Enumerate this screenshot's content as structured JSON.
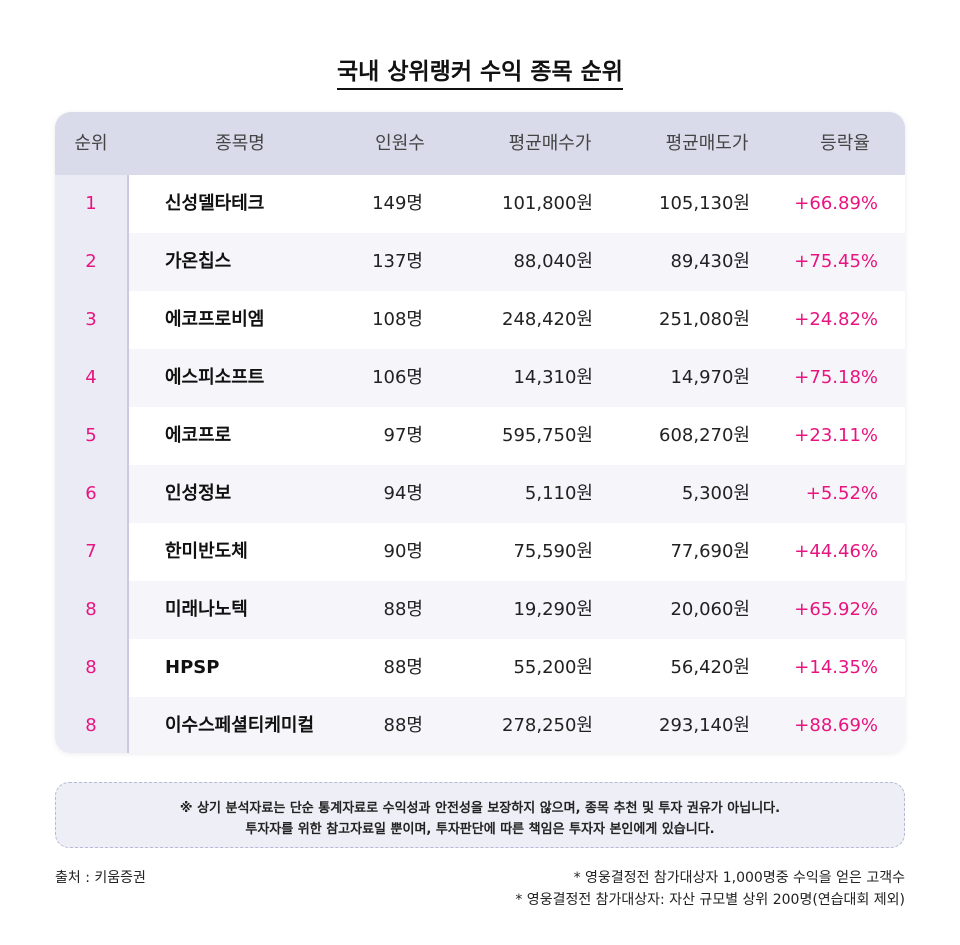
{
  "title": "국내 상위랭커 수익 종목 순위",
  "table": {
    "headers": [
      "순위",
      "종목명",
      "인원수",
      "평균매수가",
      "평균매도가",
      "등락율"
    ],
    "rows": [
      [
        "1",
        "신성델타테크",
        "149명",
        "101,800원",
        "105,130원",
        "+66.89%"
      ],
      [
        "2",
        "가온칩스",
        "137명",
        "88,040원",
        "89,430원",
        "+75.45%"
      ],
      [
        "3",
        "에코프로비엠",
        "108명",
        "248,420원",
        "251,080원",
        "+24.82%"
      ],
      [
        "4",
        "에스피소프트",
        "106명",
        "14,310원",
        "14,970원",
        "+75.18%"
      ],
      [
        "5",
        "에코프로",
        "97명",
        "595,750원",
        "608,270원",
        "+23.11%"
      ],
      [
        "6",
        "인성정보",
        "94명",
        "5,110원",
        "5,300원",
        "+5.52%"
      ],
      [
        "7",
        "한미반도체",
        "90명",
        "75,590원",
        "77,690원",
        "+44.46%"
      ],
      [
        "8",
        "미래나노텍",
        "88명",
        "19,290원",
        "20,060원",
        "+65.92%"
      ],
      [
        "8",
        "HPSP",
        "88명",
        "55,200원",
        "56,420원",
        "+14.35%"
      ],
      [
        "8",
        "이수스페셜티케미컬",
        "88명",
        "278,250원",
        "293,140원",
        "+88.69%"
      ]
    ]
  },
  "disclaimer": [
    "※ 상기 분석자료는 단순 통계자료로 수익성과 안전성을 보장하지 않으며, 종목 추천 및 투자 권유가 아닙니다.",
    "투자자를 위한 참고자료일 뿐이며, 투자판단에 따른 책임은 투자자 본인에게 있습니다."
  ],
  "source": "출처 : 키움증권",
  "footnotes": [
    "* 영웅결정전 참가대상자 1,000명중 수익을 얻은 고객수",
    "* 영웅결정전 참가대상자: 자산 규모별 상위 200명(연습대회 제외)"
  ]
}
